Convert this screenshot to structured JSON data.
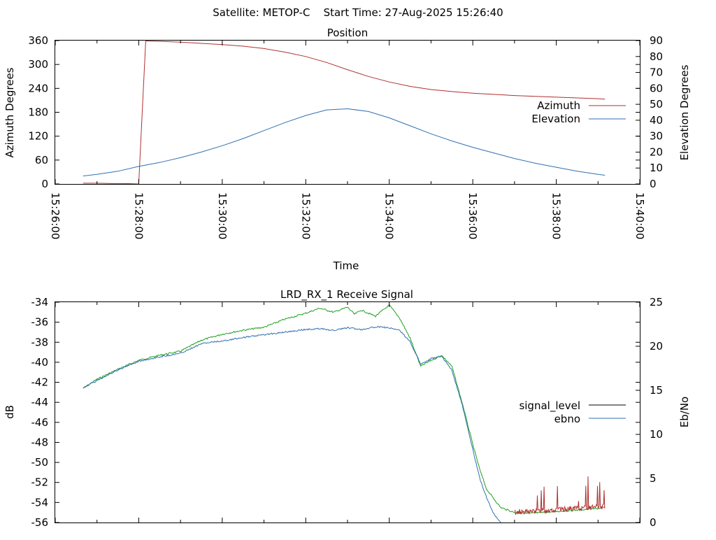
{
  "page_title": "Satellite: METOP-C    Start Time: 27-Aug-2025 15:26:40",
  "chart_data": [
    {
      "type": "line",
      "title": "Position",
      "xlabel": "Time",
      "ylabel": "Azimuth Degrees",
      "y2label": "Elevation Degrees",
      "ylim": [
        0,
        360
      ],
      "y2lim": [
        0,
        90
      ],
      "xlim": [
        "15:26:00",
        "15:40:00"
      ],
      "x_ticks": [
        "15:26:00",
        "15:28:00",
        "15:30:00",
        "15:32:00",
        "15:34:00",
        "15:36:00",
        "15:38:00",
        "15:40:00"
      ],
      "y_ticks": [
        0,
        60,
        120,
        180,
        240,
        300,
        360
      ],
      "y2_ticks": [
        0,
        10,
        20,
        30,
        40,
        50,
        60,
        70,
        80,
        90
      ],
      "legend_position": "right",
      "series": [
        {
          "name": "Azimuth",
          "axis": "y",
          "color": "#b03030",
          "x": [
            "15:26:40",
            "15:27:00",
            "15:27:20",
            "15:27:40",
            "15:28:00",
            "15:28:05",
            "15:28:10",
            "15:28:30",
            "15:29:00",
            "15:29:30",
            "15:30:00",
            "15:30:30",
            "15:31:00",
            "15:31:30",
            "15:32:00",
            "15:32:30",
            "15:33:00",
            "15:33:30",
            "15:34:00",
            "15:34:30",
            "15:35:00",
            "15:35:30",
            "15:36:00",
            "15:36:30",
            "15:37:00",
            "15:37:30",
            "15:38:00",
            "15:38:30",
            "15:39:00",
            "15:39:10"
          ],
          "values": [
            2,
            2,
            1,
            1,
            0,
            180,
            359,
            358,
            356,
            353,
            350,
            346,
            340,
            331,
            320,
            305,
            287,
            270,
            256,
            245,
            237,
            232,
            228,
            225,
            222,
            220,
            218,
            216,
            214,
            213
          ]
        },
        {
          "name": "Elevation",
          "axis": "y2",
          "color": "#3070b0",
          "x": [
            "15:26:40",
            "15:27:00",
            "15:27:30",
            "15:28:00",
            "15:28:30",
            "15:29:00",
            "15:29:30",
            "15:30:00",
            "15:30:30",
            "15:31:00",
            "15:31:30",
            "15:32:00",
            "15:32:30",
            "15:33:00",
            "15:33:30",
            "15:34:00",
            "15:34:30",
            "15:35:00",
            "15:35:30",
            "15:36:00",
            "15:36:30",
            "15:37:00",
            "15:37:30",
            "15:38:00",
            "15:38:30",
            "15:39:00",
            "15:39:10"
          ],
          "values": [
            5,
            6,
            8,
            11,
            13.5,
            16.5,
            20,
            24,
            28.5,
            33.5,
            38.5,
            43,
            46.5,
            47.2,
            45.5,
            41.5,
            36.5,
            31.5,
            27,
            23,
            19.5,
            16,
            13,
            10.5,
            8,
            6,
            5.5
          ]
        }
      ]
    },
    {
      "type": "line",
      "title": "LRD_RX_1 Receive Signal",
      "ylabel": "dB",
      "y2label": "Eb/No",
      "ylim": [
        -56,
        -34
      ],
      "y2lim": [
        0,
        25
      ],
      "xlim": [
        "15:26:00",
        "15:40:00"
      ],
      "y_ticks": [
        -34,
        -36,
        -38,
        -40,
        -42,
        -44,
        -46,
        -48,
        -50,
        -52,
        -54,
        -56
      ],
      "y2_ticks": [
        0,
        5,
        10,
        15,
        20,
        25
      ],
      "legend_position": "right",
      "series": [
        {
          "name": "signal_level",
          "axis": "y",
          "color": "#20a020",
          "x": [
            "15:26:40",
            "15:27:00",
            "15:27:30",
            "15:28:00",
            "15:28:30",
            "15:29:00",
            "15:29:30",
            "15:30:00",
            "15:30:30",
            "15:31:00",
            "15:31:30",
            "15:32:00",
            "15:32:20",
            "15:32:40",
            "15:33:00",
            "15:33:10",
            "15:33:20",
            "15:33:40",
            "15:34:00",
            "15:34:15",
            "15:34:30",
            "15:34:45",
            "15:35:00",
            "15:35:10",
            "15:35:15",
            "15:35:30",
            "15:35:45",
            "15:36:00",
            "15:36:10",
            "15:36:20",
            "15:36:40",
            "15:37:00",
            "15:37:20",
            "15:37:40",
            "15:38:00",
            "15:38:20",
            "15:38:40",
            "15:39:00",
            "15:39:10"
          ],
          "values": [
            -42.6,
            -41.7,
            -40.7,
            -39.8,
            -39.3,
            -38.9,
            -37.8,
            -37.2,
            -36.8,
            -36.5,
            -35.7,
            -35.1,
            -34.6,
            -35.0,
            -34.5,
            -35.2,
            -34.8,
            -35.4,
            -34.3,
            -35.6,
            -37.6,
            -40.4,
            -39.8,
            -39.5,
            -39.3,
            -40.4,
            -44.1,
            -48.2,
            -50.7,
            -52.7,
            -54.5,
            -55.0,
            -55.1,
            -55.0,
            -54.9,
            -54.8,
            -54.7,
            -54.6,
            -54.5
          ]
        },
        {
          "name": "ebno",
          "axis": "y2",
          "color": "#3070b0",
          "x": [
            "15:26:40",
            "15:27:00",
            "15:27:30",
            "15:28:00",
            "15:28:30",
            "15:29:00",
            "15:29:30",
            "15:30:00",
            "15:30:30",
            "15:31:00",
            "15:31:30",
            "15:32:00",
            "15:32:20",
            "15:32:40",
            "15:33:00",
            "15:33:20",
            "15:33:40",
            "15:34:00",
            "15:34:15",
            "15:34:30",
            "15:34:45",
            "15:35:00",
            "15:35:15",
            "15:35:30",
            "15:35:45",
            "15:36:00",
            "15:36:10",
            "15:36:20",
            "15:36:30",
            "15:36:40"
          ],
          "values": [
            15.3,
            16.1,
            17.3,
            18.3,
            18.8,
            19.2,
            20.3,
            20.6,
            21.0,
            21.3,
            21.6,
            21.9,
            22.0,
            21.8,
            22.1,
            21.9,
            22.2,
            22.1,
            21.8,
            20.5,
            18.0,
            18.6,
            18.9,
            17.3,
            13.3,
            8.3,
            5.0,
            2.8,
            1.0,
            0.0
          ]
        }
      ]
    }
  ]
}
